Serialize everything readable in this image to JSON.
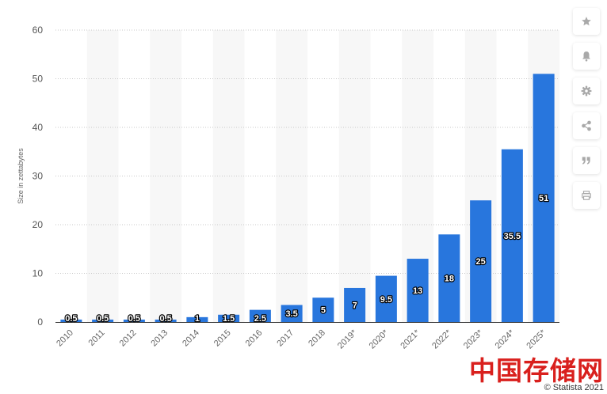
{
  "chart_data": {
    "type": "bar",
    "ylabel": "Size in zettabytes",
    "ylim": [
      0,
      60
    ],
    "yticks": [
      0,
      10,
      20,
      30,
      40,
      50,
      60
    ],
    "grid": true,
    "categories": [
      "2010",
      "2011",
      "2012",
      "2013",
      "2014",
      "2015",
      "2016",
      "2017",
      "2018",
      "2019*",
      "2020*",
      "2021*",
      "2022*",
      "2023*",
      "2024*",
      "2025*"
    ],
    "values": [
      0.5,
      0.5,
      0.5,
      0.5,
      1,
      1.5,
      2.5,
      3.5,
      5,
      7,
      9.5,
      13,
      18,
      25,
      35.5,
      51
    ],
    "data_labels": [
      "0.5",
      "0.5",
      "0.5",
      "0.5",
      "1",
      "1.5",
      "2.5",
      "3.5",
      "5",
      "7",
      "9.5",
      "13",
      "18",
      "25",
      "35.5",
      "51"
    ],
    "colors": {
      "bar": "#2876dd",
      "band": "#f7f7f7"
    }
  },
  "sidebar": {
    "buttons": [
      {
        "icon": "star-icon",
        "name": "favorite-button"
      },
      {
        "icon": "bell-icon",
        "name": "notification-button"
      },
      {
        "icon": "gear-icon",
        "name": "settings-button"
      },
      {
        "icon": "share-icon",
        "name": "share-button"
      },
      {
        "icon": "quote-icon",
        "name": "cite-button"
      },
      {
        "icon": "print-icon",
        "name": "print-button"
      }
    ]
  },
  "watermark": {
    "brand": "中国存储网",
    "source": "© Statista 2021"
  }
}
